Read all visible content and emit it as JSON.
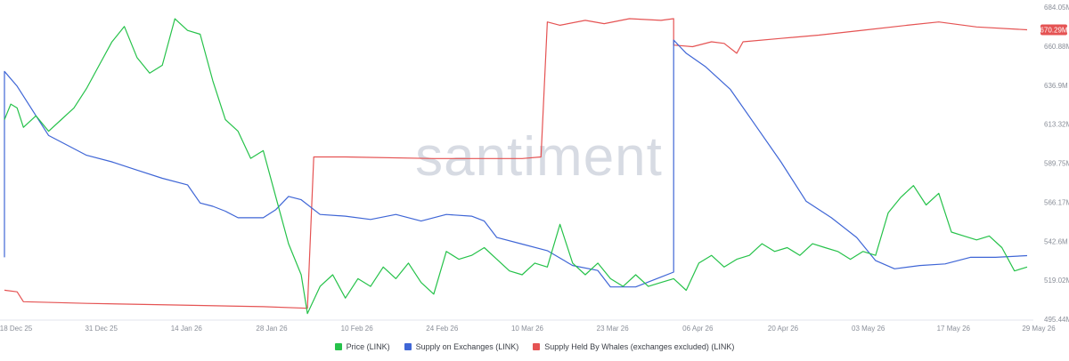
{
  "chart_data": {
    "type": "line",
    "watermark": "santiment",
    "x_ticks": [
      "18 Dec 25",
      "31 Dec 25",
      "14 Jan 26",
      "28 Jan 26",
      "10 Feb 26",
      "24 Feb 26",
      "10 Mar 26",
      "23 Mar 26",
      "06 Apr 26",
      "20 Apr 26",
      "03 May 26",
      "17 May 26",
      "29 May 26"
    ],
    "x_range": [
      "2025-12-18",
      "2026-05-29"
    ],
    "right_axis": {
      "ticks": [
        "684.05M",
        "660.88M",
        "636.9M",
        "613.32M",
        "589.75M",
        "566.17M",
        "542.6M",
        "519.02M",
        "495.44M"
      ],
      "range": [
        495.44,
        684.05
      ],
      "unit": "M"
    },
    "last_value_badge": {
      "label": "670.29M",
      "value": 670.29,
      "color": "#e55353"
    },
    "grid": false,
    "legend_position": "bottom",
    "series": [
      {
        "name": "Price (LINK)",
        "color": "#26c24a",
        "axis": "hidden",
        "range": [
          7.5,
          15.5
        ],
        "points": [
          [
            "2025-12-18",
            12.6
          ],
          [
            "2025-12-19",
            13.0
          ],
          [
            "2025-12-20",
            12.9
          ],
          [
            "2025-12-21",
            12.4
          ],
          [
            "2025-12-23",
            12.7
          ],
          [
            "2025-12-25",
            12.3
          ],
          [
            "2025-12-27",
            12.6
          ],
          [
            "2025-12-29",
            12.9
          ],
          [
            "2025-12-31",
            13.4
          ],
          [
            "2026-01-02",
            14.0
          ],
          [
            "2026-01-04",
            14.6
          ],
          [
            "2026-01-06",
            15.0
          ],
          [
            "2026-01-08",
            14.2
          ],
          [
            "2026-01-10",
            13.8
          ],
          [
            "2026-01-12",
            14.0
          ],
          [
            "2026-01-14",
            15.2
          ],
          [
            "2026-01-16",
            14.9
          ],
          [
            "2026-01-18",
            14.8
          ],
          [
            "2026-01-20",
            13.6
          ],
          [
            "2026-01-22",
            12.6
          ],
          [
            "2026-01-24",
            12.3
          ],
          [
            "2026-01-26",
            11.6
          ],
          [
            "2026-01-28",
            11.8
          ],
          [
            "2026-01-30",
            10.6
          ],
          [
            "2026-02-01",
            9.4
          ],
          [
            "2026-02-03",
            8.6
          ],
          [
            "2026-02-04",
            7.6
          ],
          [
            "2026-02-06",
            8.3
          ],
          [
            "2026-02-08",
            8.6
          ],
          [
            "2026-02-10",
            8.0
          ],
          [
            "2026-02-12",
            8.5
          ],
          [
            "2026-02-14",
            8.3
          ],
          [
            "2026-02-16",
            8.8
          ],
          [
            "2026-02-18",
            8.5
          ],
          [
            "2026-02-20",
            8.9
          ],
          [
            "2026-02-22",
            8.4
          ],
          [
            "2026-02-24",
            8.1
          ],
          [
            "2026-02-26",
            9.2
          ],
          [
            "2026-02-28",
            9.0
          ],
          [
            "2026-03-02",
            9.1
          ],
          [
            "2026-03-04",
            9.3
          ],
          [
            "2026-03-06",
            9.0
          ],
          [
            "2026-03-08",
            8.7
          ],
          [
            "2026-03-10",
            8.6
          ],
          [
            "2026-03-12",
            8.9
          ],
          [
            "2026-03-14",
            8.8
          ],
          [
            "2026-03-16",
            9.9
          ],
          [
            "2026-03-18",
            8.9
          ],
          [
            "2026-03-20",
            8.6
          ],
          [
            "2026-03-22",
            8.9
          ],
          [
            "2026-03-24",
            8.5
          ],
          [
            "2026-03-26",
            8.3
          ],
          [
            "2026-03-28",
            8.6
          ],
          [
            "2026-03-30",
            8.3
          ],
          [
            "2026-04-01",
            8.4
          ],
          [
            "2026-04-03",
            8.5
          ],
          [
            "2026-04-05",
            8.2
          ],
          [
            "2026-04-07",
            8.9
          ],
          [
            "2026-04-09",
            9.1
          ],
          [
            "2026-04-11",
            8.8
          ],
          [
            "2026-04-13",
            9.0
          ],
          [
            "2026-04-15",
            9.1
          ],
          [
            "2026-04-17",
            9.4
          ],
          [
            "2026-04-19",
            9.2
          ],
          [
            "2026-04-21",
            9.3
          ],
          [
            "2026-04-23",
            9.1
          ],
          [
            "2026-04-25",
            9.4
          ],
          [
            "2026-04-27",
            9.3
          ],
          [
            "2026-04-29",
            9.2
          ],
          [
            "2026-05-01",
            9.0
          ],
          [
            "2026-05-03",
            9.2
          ],
          [
            "2026-05-05",
            9.1
          ],
          [
            "2026-05-07",
            10.2
          ],
          [
            "2026-05-09",
            10.6
          ],
          [
            "2026-05-11",
            10.9
          ],
          [
            "2026-05-13",
            10.4
          ],
          [
            "2026-05-15",
            10.7
          ],
          [
            "2026-05-17",
            9.7
          ],
          [
            "2026-05-19",
            9.6
          ],
          [
            "2026-05-21",
            9.5
          ],
          [
            "2026-05-23",
            9.6
          ],
          [
            "2026-05-25",
            9.3
          ],
          [
            "2026-05-27",
            8.7
          ],
          [
            "2026-05-29",
            8.8
          ]
        ]
      },
      {
        "name": "Supply on Exchanges (LINK)",
        "color": "#3f66d6",
        "axis": "right",
        "points": [
          [
            "2025-12-18",
            532
          ],
          [
            "2025-12-18",
            645
          ],
          [
            "2025-12-20",
            636
          ],
          [
            "2025-12-22",
            624
          ],
          [
            "2025-12-25",
            606
          ],
          [
            "2025-12-28",
            600
          ],
          [
            "2025-12-31",
            594
          ],
          [
            "2026-01-04",
            590
          ],
          [
            "2026-01-08",
            585
          ],
          [
            "2026-01-12",
            580
          ],
          [
            "2026-01-16",
            576
          ],
          [
            "2026-01-18",
            565
          ],
          [
            "2026-01-20",
            563
          ],
          [
            "2026-01-22",
            560
          ],
          [
            "2026-01-24",
            556
          ],
          [
            "2026-01-28",
            556
          ],
          [
            "2026-01-30",
            561
          ],
          [
            "2026-02-01",
            569
          ],
          [
            "2026-02-03",
            567
          ],
          [
            "2026-02-06",
            558
          ],
          [
            "2026-02-10",
            557
          ],
          [
            "2026-02-14",
            555
          ],
          [
            "2026-02-18",
            558
          ],
          [
            "2026-02-22",
            554
          ],
          [
            "2026-02-26",
            558
          ],
          [
            "2026-03-02",
            557
          ],
          [
            "2026-03-04",
            554
          ],
          [
            "2026-03-06",
            544
          ],
          [
            "2026-03-10",
            540
          ],
          [
            "2026-03-14",
            536
          ],
          [
            "2026-03-18",
            527
          ],
          [
            "2026-03-22",
            524
          ],
          [
            "2026-03-24",
            514
          ],
          [
            "2026-03-28",
            514
          ],
          [
            "2026-04-01",
            520
          ],
          [
            "2026-04-03",
            523
          ],
          [
            "2026-04-03",
            664
          ],
          [
            "2026-04-05",
            656
          ],
          [
            "2026-04-08",
            648
          ],
          [
            "2026-04-12",
            634
          ],
          [
            "2026-04-16",
            612
          ],
          [
            "2026-04-20",
            590
          ],
          [
            "2026-04-24",
            566
          ],
          [
            "2026-04-28",
            556
          ],
          [
            "2026-05-02",
            544
          ],
          [
            "2026-05-05",
            530
          ],
          [
            "2026-05-08",
            525
          ],
          [
            "2026-05-12",
            527
          ],
          [
            "2026-05-16",
            528
          ],
          [
            "2026-05-20",
            532
          ],
          [
            "2026-05-24",
            532
          ],
          [
            "2026-05-29",
            533
          ]
        ]
      },
      {
        "name": "Supply Held By Whales (exchanges excluded) (LINK)",
        "color": "#e55353",
        "axis": "right",
        "points": [
          [
            "2025-12-18",
            512
          ],
          [
            "2025-12-20",
            511
          ],
          [
            "2025-12-21",
            505
          ],
          [
            "2025-12-31",
            504
          ],
          [
            "2026-01-14",
            503
          ],
          [
            "2026-01-28",
            502
          ],
          [
            "2026-02-04",
            501
          ],
          [
            "2026-02-05",
            593
          ],
          [
            "2026-02-10",
            593
          ],
          [
            "2026-02-24",
            592
          ],
          [
            "2026-03-10",
            592
          ],
          [
            "2026-03-13",
            593
          ],
          [
            "2026-03-14",
            675
          ],
          [
            "2026-03-16",
            673
          ],
          [
            "2026-03-20",
            676
          ],
          [
            "2026-03-23",
            674
          ],
          [
            "2026-03-27",
            677
          ],
          [
            "2026-04-01",
            676
          ],
          [
            "2026-04-03",
            677
          ],
          [
            "2026-04-03",
            661
          ],
          [
            "2026-04-06",
            660
          ],
          [
            "2026-04-09",
            663
          ],
          [
            "2026-04-11",
            662
          ],
          [
            "2026-04-13",
            656
          ],
          [
            "2026-04-14",
            663
          ],
          [
            "2026-04-20",
            665
          ],
          [
            "2026-04-26",
            667
          ],
          [
            "2026-05-03",
            670
          ],
          [
            "2026-05-10",
            673
          ],
          [
            "2026-05-15",
            675
          ],
          [
            "2026-05-21",
            672
          ],
          [
            "2026-05-29",
            670.29
          ]
        ]
      }
    ]
  }
}
